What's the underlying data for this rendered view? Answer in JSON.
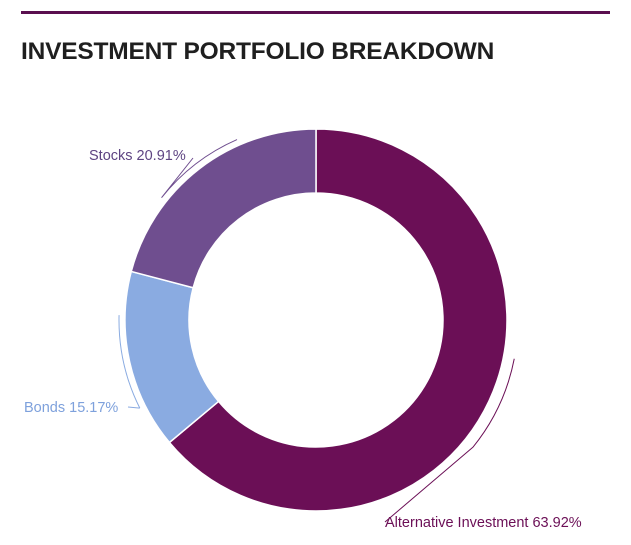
{
  "chart_data": {
    "type": "pie",
    "variant": "donut",
    "title": "INVESTMENT PORTFOLIO BREAKDOWN",
    "slices": [
      {
        "label": "Alternative Investment",
        "value": 63.92,
        "value_label": "63.92%",
        "color": "#6b0f56",
        "text_color": "#6b0f56"
      },
      {
        "label": "Bonds",
        "value": 15.17,
        "value_label": "15.17%",
        "color": "#8aabe1",
        "text_color": "#7ea1dc"
      },
      {
        "label": "Stocks",
        "value": 20.91,
        "value_label": "20.91%",
        "color": "#6f4e8f",
        "text_color": "#5e4482"
      }
    ],
    "start_angle": "12 o'clock",
    "direction": "clockwise",
    "legend": "none",
    "data_labels": "outside with leader lines"
  },
  "colors": {
    "top_rule": "#5a0f4f",
    "title": "#1f1f1f",
    "slice_border": "#ffffff"
  }
}
